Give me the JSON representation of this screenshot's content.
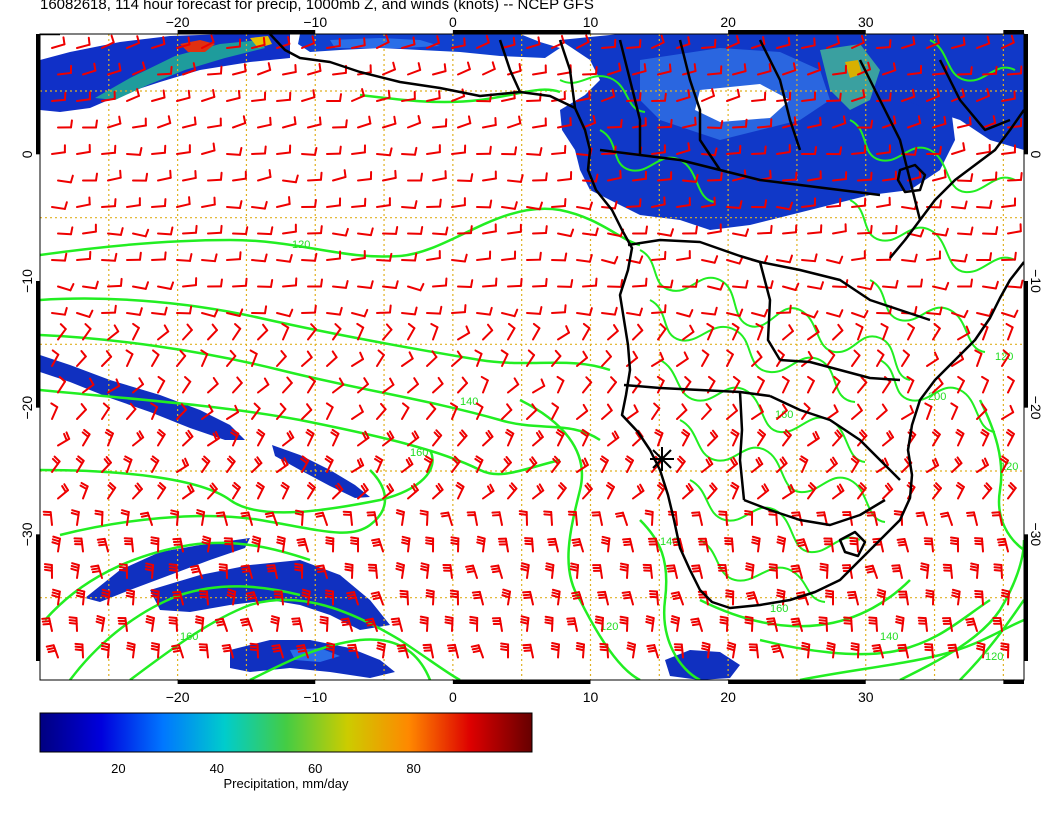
{
  "title": "16082618, 114 hour forecast for precip, 1000mb Z, and winds (knots) -- NCEP GFS",
  "map": {
    "lon_range": [
      -30,
      41.5
    ],
    "lat_range": [
      -41.5,
      9.5
    ],
    "lon_ticks": [
      -20,
      -10,
      0,
      10,
      20,
      30
    ],
    "lat_ticks": [
      0,
      -10,
      -20,
      -30
    ],
    "gridlines": true,
    "grid_color": "#e0b020",
    "wind_barb_color": "#ee0000",
    "contour_color": "#22ee22",
    "coastline_color": "#000000",
    "contour_labels": [
      "120",
      "140",
      "160",
      "160",
      "140",
      "120",
      "160",
      "200",
      "120",
      "120",
      "140",
      "160",
      "120"
    ],
    "station_marker": {
      "lon": 14.5,
      "lat": -22.9,
      "symbol": "star"
    }
  },
  "colorbar": {
    "label": "Precipitation, mm/day",
    "ticks": [
      "20",
      "40",
      "60",
      "80"
    ],
    "range": [
      0,
      100
    ],
    "colors": [
      "#000080",
      "#0000dd",
      "#0077ff",
      "#00cccc",
      "#44cc44",
      "#cccc00",
      "#ff8800",
      "#dd0000",
      "#660000"
    ]
  }
}
